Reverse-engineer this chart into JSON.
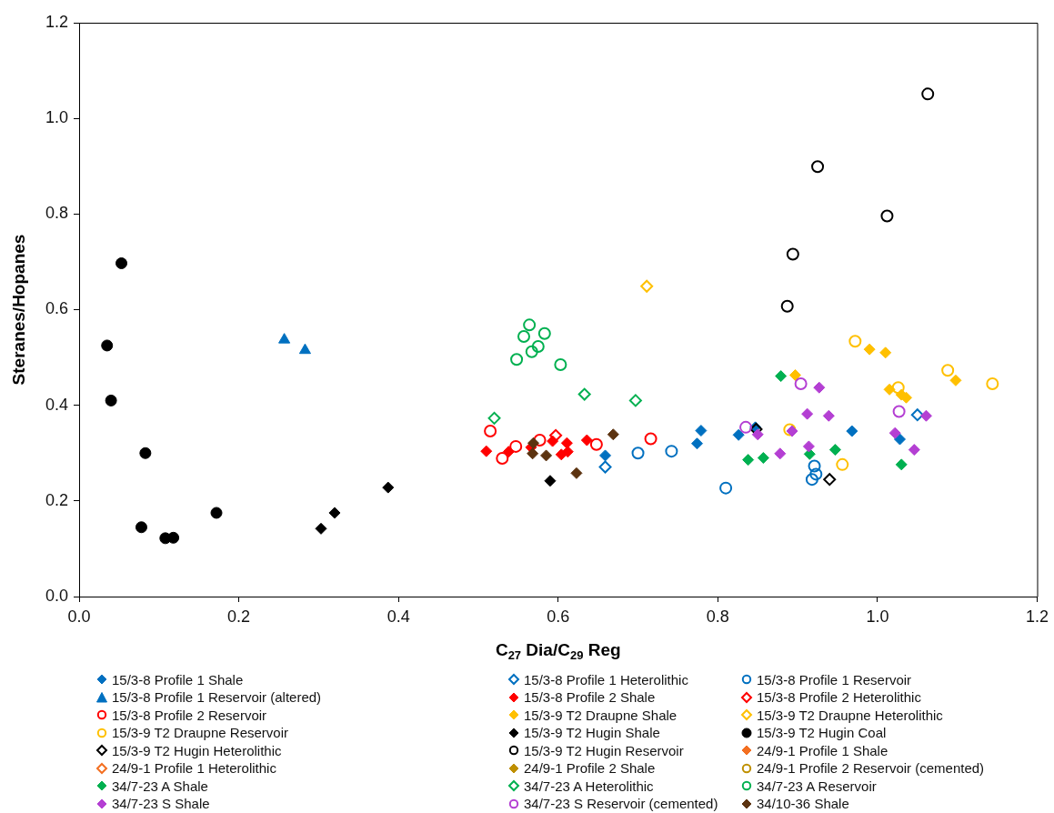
{
  "chart_data": {
    "type": "scatter",
    "xlabel": "C$_{27}$ Dia/C$_{29}$ Reg",
    "ylabel": "Steranes/Hopanes",
    "xlim": [
      0,
      1.2
    ],
    "xticks": [
      {
        "value": 0,
        "label": "0.0"
      },
      {
        "value": 0.2,
        "label": "0.2"
      },
      {
        "value": 0.4,
        "label": "0.4"
      },
      {
        "value": 0.6,
        "label": "0.6"
      },
      {
        "value": 0.8,
        "label": "0.8"
      },
      {
        "value": 1,
        "label": "1.0"
      },
      {
        "value": 1.2,
        "label": "1.2"
      }
    ],
    "ylim": [
      0,
      1.2
    ],
    "yticks": [
      {
        "value": 0,
        "label": "0.0"
      },
      {
        "value": 0.2,
        "label": "0.2"
      },
      {
        "value": 0.4,
        "label": "0.4"
      },
      {
        "value": 0.6,
        "label": "0.6"
      },
      {
        "value": 0.8,
        "label": "0.8"
      },
      {
        "value": 1,
        "label": "1.0"
      },
      {
        "value": 1.2,
        "label": "1.2"
      }
    ],
    "grid": false,
    "legend": "bottom",
    "series": [
      {
        "name": "15/3-8 Profile 1 Shale",
        "color": "#0070c0",
        "marker": "diamond",
        "x": [
          0.659,
          0.779,
          0.774,
          0.826,
          0.847,
          0.968,
          1.028
        ],
        "values": [
          0.295,
          0.347,
          0.32,
          0.338,
          0.354,
          0.346,
          0.329
        ]
      },
      {
        "name": "15/3-8 Profile 1 Heterolithic",
        "color": "#0070c0",
        "marker": "diamond-open",
        "x": [
          0.659,
          1.05
        ],
        "values": [
          0.271,
          0.38
        ]
      },
      {
        "name": "15/3-8 Profile 1 Reservoir",
        "color": "#0070c0",
        "marker": "circle-open",
        "x": [
          0.7,
          0.742,
          0.81,
          0.921,
          0.923,
          0.918
        ],
        "values": [
          0.3,
          0.304,
          0.227,
          0.273,
          0.256,
          0.245
        ]
      },
      {
        "name": "15/3-8 Profile 1 Reservoir (altered)",
        "color": "#0070c0",
        "marker": "triangle",
        "x": [
          0.257,
          0.283
        ],
        "values": [
          0.537,
          0.515
        ]
      },
      {
        "name": "15/3-8 Profile 2 Shale",
        "color": "#ff0000",
        "marker": "diamond",
        "x": [
          0.51,
          0.538,
          0.566,
          0.593,
          0.611,
          0.604,
          0.612,
          0.636
        ],
        "values": [
          0.304,
          0.303,
          0.312,
          0.325,
          0.321,
          0.297,
          0.303,
          0.327
        ]
      },
      {
        "name": "15/3-8 Profile 2 Heterolithic",
        "color": "#ff0000",
        "marker": "diamond-open",
        "x": [
          0.597
        ],
        "values": [
          0.337
        ]
      },
      {
        "name": "15/3-8 Profile 2 Reservoir",
        "color": "#ff0000",
        "marker": "circle-open",
        "x": [
          0.515,
          0.53,
          0.547,
          0.577,
          0.648,
          0.716
        ],
        "values": [
          0.346,
          0.289,
          0.314,
          0.327,
          0.318,
          0.33
        ]
      },
      {
        "name": "15/3-9 T2 Draupne Shale",
        "color": "#ffc000",
        "marker": "diamond",
        "x": [
          0.99,
          1.01,
          0.897,
          1.098,
          1.015,
          1.03,
          1.036
        ],
        "values": [
          0.517,
          0.51,
          0.463,
          0.452,
          0.433,
          0.422,
          0.416
        ]
      },
      {
        "name": "15/3-9 T2 Draupne Heterolithic",
        "color": "#ffc000",
        "marker": "diamond-open",
        "x": [
          0.711
        ],
        "values": [
          0.649
        ]
      },
      {
        "name": "15/3-9 T2 Draupne Reservoir",
        "color": "#ffc000",
        "marker": "circle-open",
        "x": [
          0.972,
          1.088,
          1.144,
          1.026,
          0.956,
          0.89
        ],
        "values": [
          0.534,
          0.473,
          0.445,
          0.437,
          0.276,
          0.349
        ]
      },
      {
        "name": "15/3-9 T2 Hugin Shale",
        "color": "#000000",
        "marker": "diamond",
        "x": [
          0.303,
          0.32,
          0.387,
          0.59
        ],
        "values": [
          0.142,
          0.175,
          0.228,
          0.242
        ]
      },
      {
        "name": "15/3-9 T2 Hugin Coal",
        "color": "#000000",
        "marker": "circle",
        "x": [
          0.035,
          0.04,
          0.053,
          0.078,
          0.083,
          0.108,
          0.118,
          0.172
        ],
        "values": [
          0.525,
          0.41,
          0.697,
          0.145,
          0.3,
          0.122,
          0.123,
          0.175
        ]
      },
      {
        "name": "15/3-9 T2 Hugin Heterolithic",
        "color": "#000000",
        "marker": "diamond-open",
        "x": [
          0.94,
          0.848
        ],
        "values": [
          0.245,
          0.35
        ]
      },
      {
        "name": "15/3-9 T2 Hugin Reservoir",
        "color": "#000000",
        "marker": "circle-open",
        "x": [
          1.063,
          0.925,
          1.012,
          0.894,
          0.887
        ],
        "values": [
          1.051,
          0.899,
          0.796,
          0.716,
          0.607
        ]
      },
      {
        "name": "24/9-1 Profile 1 Shale",
        "color": "#f36f21",
        "marker": "diamond"
      },
      {
        "name": "24/9-1 Profile 1 Heterolithic",
        "color": "#f36f21",
        "marker": "diamond-open"
      },
      {
        "name": "24/9-1 Profile 2 Shale",
        "color": "#bf9000",
        "marker": "diamond"
      },
      {
        "name": "24/9-1 Profile 2 Reservoir (cemented)",
        "color": "#bf9000",
        "marker": "circle-open"
      },
      {
        "name": "34/7-23 A Shale",
        "color": "#00b050",
        "marker": "diamond",
        "x": [
          0.879,
          0.838,
          0.857,
          0.915,
          0.947,
          1.03
        ],
        "values": [
          0.461,
          0.286,
          0.29,
          0.298,
          0.307,
          0.276
        ]
      },
      {
        "name": "34/7-23 A Heterolithic",
        "color": "#00b050",
        "marker": "diamond-open",
        "x": [
          0.633,
          0.697,
          0.52
        ],
        "values": [
          0.423,
          0.41,
          0.373
        ]
      },
      {
        "name": "34/7-23 A Reservoir",
        "color": "#00b050",
        "marker": "circle-open",
        "x": [
          0.564,
          0.557,
          0.583,
          0.575,
          0.567,
          0.548,
          0.603
        ],
        "values": [
          0.568,
          0.544,
          0.55,
          0.523,
          0.512,
          0.496,
          0.485
        ]
      },
      {
        "name": "34/7-23 S Shale",
        "color": "#b43fd3",
        "marker": "diamond",
        "x": [
          0.927,
          0.912,
          0.939,
          1.061,
          0.85,
          0.893,
          1.022,
          0.914,
          0.878,
          1.046
        ],
        "values": [
          0.437,
          0.382,
          0.378,
          0.378,
          0.339,
          0.346,
          0.342,
          0.314,
          0.299,
          0.307
        ]
      },
      {
        "name": "34/7-23 S Reservoir (cemented)",
        "color": "#b43fd3",
        "marker": "circle-open",
        "x": [
          0.904,
          0.835,
          1.027
        ],
        "values": [
          0.445,
          0.354,
          0.387
        ]
      },
      {
        "name": "34/10-36 Shale",
        "color": "#5c3310",
        "marker": "diamond",
        "x": [
          0.569,
          0.568,
          0.585,
          0.669,
          0.623
        ],
        "values": [
          0.321,
          0.299,
          0.295,
          0.339,
          0.258
        ]
      }
    ]
  }
}
